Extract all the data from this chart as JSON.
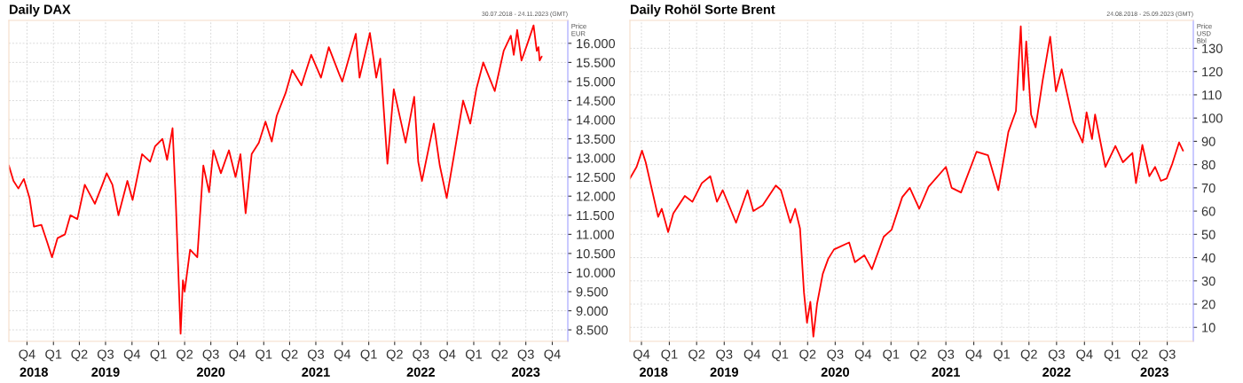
{
  "chart_data": [
    {
      "type": "line",
      "title": "Daily DAX",
      "subtitle": "30.07.2018 - 24.11.2023 (GMT)",
      "ylabel": "Price EUR",
      "x": [
        "2018-07-30",
        "2018-08-15",
        "2018-09-01",
        "2018-09-20",
        "2018-10-10",
        "2018-10-25",
        "2018-11-20",
        "2018-12-10",
        "2018-12-27",
        "2019-01-15",
        "2019-02-10",
        "2019-03-01",
        "2019-03-25",
        "2019-04-20",
        "2019-05-25",
        "2019-06-20",
        "2019-07-05",
        "2019-07-25",
        "2019-08-15",
        "2019-09-15",
        "2019-10-03",
        "2019-11-05",
        "2019-12-03",
        "2019-12-20",
        "2020-01-15",
        "2020-01-31",
        "2020-02-19",
        "2020-03-01",
        "2020-03-18",
        "2020-03-26",
        "2020-04-01",
        "2020-04-20",
        "2020-05-15",
        "2020-06-05",
        "2020-06-25",
        "2020-07-10",
        "2020-08-05",
        "2020-09-02",
        "2020-09-25",
        "2020-10-12",
        "2020-10-30",
        "2020-11-20",
        "2020-12-15",
        "2021-01-07",
        "2021-01-29",
        "2021-02-15",
        "2021-03-18",
        "2021-04-10",
        "2021-05-12",
        "2021-06-15",
        "2021-07-19",
        "2021-08-15",
        "2021-09-20",
        "2021-10-01",
        "2021-11-17",
        "2021-11-30",
        "2022-01-05",
        "2022-01-27",
        "2022-02-10",
        "2022-03-07",
        "2022-03-29",
        "2022-05-09",
        "2022-06-08",
        "2022-06-22",
        "2022-07-05",
        "2022-08-15",
        "2022-09-05",
        "2022-09-29",
        "2022-10-25",
        "2022-11-25",
        "2022-12-20",
        "2023-01-10",
        "2023-02-03",
        "2023-03-15",
        "2023-04-15",
        "2023-05-10",
        "2023-05-20",
        "2023-06-01",
        "2023-06-16",
        "2023-07-07",
        "2023-07-28",
        "2023-08-08",
        "2023-08-14",
        "2023-08-18",
        "2023-08-25"
      ],
      "series": [
        {
          "color": "#ff0000",
          "values": [
            12800,
            12400,
            12200,
            12450,
            11950,
            11200,
            11250,
            10800,
            10400,
            10900,
            11000,
            11500,
            11400,
            12300,
            11800,
            12300,
            12600,
            12300,
            11500,
            12400,
            11900,
            13100,
            12900,
            13300,
            13500,
            12950,
            13780,
            11900,
            8400,
            9800,
            9500,
            10600,
            10400,
            12800,
            12100,
            13200,
            12600,
            13200,
            12500,
            13100,
            11550,
            13100,
            13400,
            13950,
            13430,
            14100,
            14700,
            15300,
            14900,
            15700,
            15100,
            15900,
            15200,
            15000,
            16250,
            15100,
            16270,
            15100,
            15600,
            12850,
            14800,
            13400,
            14600,
            12900,
            12400,
            13900,
            12800,
            11950,
            13100,
            14500,
            13900,
            14800,
            15500,
            14750,
            15800,
            16200,
            15700,
            16350,
            15550,
            16000,
            16470,
            15800,
            15900,
            15550,
            15650
          ]
        }
      ],
      "xlim": [
        "2018-07-30",
        "2023-11-24"
      ],
      "ylim": [
        8200,
        16600
      ],
      "yticks": [
        {
          "value": 8500,
          "label": "8.500"
        },
        {
          "value": 9000,
          "label": "9.000"
        },
        {
          "value": 9500,
          "label": "9.500"
        },
        {
          "value": 10000,
          "label": "10.000"
        },
        {
          "value": 10500,
          "label": "10.500"
        },
        {
          "value": 11000,
          "label": "11.000"
        },
        {
          "value": 11500,
          "label": "11.500"
        },
        {
          "value": 12000,
          "label": "12.000"
        },
        {
          "value": 12500,
          "label": "12.500"
        },
        {
          "value": 13000,
          "label": "13.000"
        },
        {
          "value": 13500,
          "label": "13.500"
        },
        {
          "value": 14000,
          "label": "14.000"
        },
        {
          "value": 14500,
          "label": "14.500"
        },
        {
          "value": 15000,
          "label": "15.000"
        },
        {
          "value": 15500,
          "label": "15.500"
        },
        {
          "value": 16000,
          "label": "16.000"
        }
      ],
      "xticks": [
        {
          "value": "2018-10-01",
          "label": "Q4"
        },
        {
          "value": "2019-01-01",
          "label": "Q1"
        },
        {
          "value": "2019-04-01",
          "label": "Q2"
        },
        {
          "value": "2019-07-01",
          "label": "Q3"
        },
        {
          "value": "2019-10-01",
          "label": "Q4"
        },
        {
          "value": "2020-01-01",
          "label": "Q1"
        },
        {
          "value": "2020-04-01",
          "label": "Q2"
        },
        {
          "value": "2020-07-01",
          "label": "Q3"
        },
        {
          "value": "2020-10-01",
          "label": "Q4"
        },
        {
          "value": "2021-01-01",
          "label": "Q1"
        },
        {
          "value": "2021-04-01",
          "label": "Q2"
        },
        {
          "value": "2021-07-01",
          "label": "Q3"
        },
        {
          "value": "2021-10-01",
          "label": "Q4"
        },
        {
          "value": "2022-01-01",
          "label": "Q1"
        },
        {
          "value": "2022-04-01",
          "label": "Q2"
        },
        {
          "value": "2022-07-01",
          "label": "Q3"
        },
        {
          "value": "2022-10-01",
          "label": "Q4"
        },
        {
          "value": "2023-01-01",
          "label": "Q1"
        },
        {
          "value": "2023-04-01",
          "label": "Q2"
        },
        {
          "value": "2023-07-01",
          "label": "Q3"
        },
        {
          "value": "2023-10-01",
          "label": "Q4"
        }
      ],
      "x2lim": [
        "2018-07-30",
        "2023-11-24"
      ],
      "x2ticks": [
        {
          "value": "2018-10-25",
          "label": "2018"
        },
        {
          "value": "2019-07-01",
          "label": "2019"
        },
        {
          "value": "2020-07-01",
          "label": "2020"
        },
        {
          "value": "2021-07-01",
          "label": "2021"
        },
        {
          "value": "2022-07-01",
          "label": "2022"
        },
        {
          "value": "2023-07-01",
          "label": "2023"
        }
      ],
      "grid": true,
      "legend": false
    },
    {
      "type": "line",
      "title": "Daily Rohöl Sorte Brent",
      "subtitle": "24.08.2018 - 25.09.2023 (GMT)",
      "ylabel": "Price USD Bbl",
      "x": [
        "2018-08-24",
        "2018-09-15",
        "2018-10-03",
        "2018-10-15",
        "2018-11-05",
        "2018-11-25",
        "2018-12-07",
        "2018-12-28",
        "2019-01-14",
        "2019-02-21",
        "2019-03-18",
        "2019-04-18",
        "2019-05-16",
        "2019-06-07",
        "2019-06-26",
        "2019-08-09",
        "2019-09-16",
        "2019-10-05",
        "2019-11-05",
        "2019-12-18",
        "2020-01-04",
        "2020-02-04",
        "2020-02-20",
        "2020-03-07",
        "2020-03-20",
        "2020-03-30",
        "2020-04-10",
        "2020-04-20",
        "2020-05-02",
        "2020-05-21",
        "2020-06-08",
        "2020-06-27",
        "2020-08-16",
        "2020-09-04",
        "2020-10-05",
        "2020-10-30",
        "2020-12-08",
        "2021-01-03",
        "2021-02-07",
        "2021-03-04",
        "2021-04-04",
        "2021-05-05",
        "2021-07-01",
        "2021-07-20",
        "2021-08-20",
        "2021-10-10",
        "2021-11-17",
        "2021-12-06",
        "2021-12-21",
        "2022-01-23",
        "2022-02-17",
        "2022-03-05",
        "2022-03-14",
        "2022-03-23",
        "2022-04-08",
        "2022-04-23",
        "2022-05-16",
        "2022-06-10",
        "2022-06-29",
        "2022-07-18",
        "2022-08-25",
        "2022-09-25",
        "2022-10-08",
        "2022-10-26",
        "2022-11-05",
        "2022-12-09",
        "2023-01-11",
        "2023-02-05",
        "2023-03-08",
        "2023-03-20",
        "2023-04-10",
        "2023-05-03",
        "2023-05-22",
        "2023-06-10",
        "2023-06-29",
        "2023-07-18",
        "2023-08-09",
        "2023-08-22"
      ],
      "series": [
        {
          "color": "#ff0000",
          "values": [
            74,
            79,
            86,
            81,
            69,
            57.5,
            61,
            51,
            59,
            66.5,
            64,
            72,
            75,
            64,
            69,
            55,
            69,
            60,
            62.5,
            71,
            69,
            55,
            61,
            52.5,
            25,
            12,
            21,
            6,
            20,
            33,
            39.5,
            43.5,
            46.5,
            38,
            41,
            35,
            49,
            52,
            66,
            70,
            61,
            70.5,
            79,
            70,
            68,
            85.5,
            84,
            75.5,
            69,
            94,
            103,
            139.5,
            112,
            133,
            101.5,
            96,
            116,
            135,
            111.5,
            121,
            98.5,
            89.5,
            102.5,
            91,
            101.5,
            79,
            88,
            81,
            85,
            72,
            88.5,
            75,
            79,
            73,
            74,
            80.5,
            89.5,
            86
          ]
        }
      ],
      "xlim": [
        "2018-08-24",
        "2023-09-25"
      ],
      "ylim": [
        4,
        142
      ],
      "yticks": [
        10,
        20,
        30,
        40,
        50,
        60,
        70,
        80,
        90,
        100,
        110,
        120,
        130
      ],
      "xticks": [
        {
          "value": "2018-10-01",
          "label": "Q4"
        },
        {
          "value": "2019-01-01",
          "label": "Q1"
        },
        {
          "value": "2019-04-01",
          "label": "Q2"
        },
        {
          "value": "2019-07-01",
          "label": "Q3"
        },
        {
          "value": "2019-10-01",
          "label": "Q4"
        },
        {
          "value": "2020-01-01",
          "label": "Q1"
        },
        {
          "value": "2020-04-01",
          "label": "Q2"
        },
        {
          "value": "2020-07-01",
          "label": "Q3"
        },
        {
          "value": "2020-10-01",
          "label": "Q4"
        },
        {
          "value": "2021-01-01",
          "label": "Q1"
        },
        {
          "value": "2021-04-01",
          "label": "Q2"
        },
        {
          "value": "2021-07-01",
          "label": "Q3"
        },
        {
          "value": "2021-10-01",
          "label": "Q4"
        },
        {
          "value": "2022-01-01",
          "label": "Q1"
        },
        {
          "value": "2022-04-01",
          "label": "Q2"
        },
        {
          "value": "2022-07-01",
          "label": "Q3"
        },
        {
          "value": "2022-10-01",
          "label": "Q4"
        },
        {
          "value": "2023-01-01",
          "label": "Q1"
        },
        {
          "value": "2023-04-01",
          "label": "Q2"
        },
        {
          "value": "2023-07-01",
          "label": "Q3"
        }
      ],
      "x2lim": [
        "2018-08-24",
        "2023-09-25"
      ],
      "x2ticks": [
        {
          "value": "2018-11-10",
          "label": "2018"
        },
        {
          "value": "2019-07-01",
          "label": "2019"
        },
        {
          "value": "2020-07-01",
          "label": "2020"
        },
        {
          "value": "2021-07-01",
          "label": "2021"
        },
        {
          "value": "2022-07-01",
          "label": "2022"
        },
        {
          "value": "2023-05-20",
          "label": "2023"
        }
      ],
      "grid": true,
      "legend": false
    }
  ]
}
